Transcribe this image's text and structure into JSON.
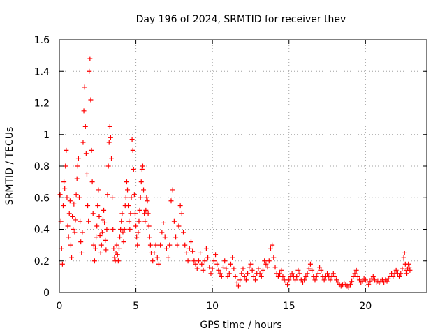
{
  "chart_data": {
    "type": "scatter",
    "title": "Day 196 of 2024, SRMTID for receiver thev",
    "xlabel": "GPS time / hours",
    "ylabel": "SRMTID / TECUs",
    "xlim": [
      0,
      24
    ],
    "ylim": [
      0,
      1.6
    ],
    "xticks": [
      0,
      5,
      10,
      15,
      20
    ],
    "xtick_labels": [
      "0",
      "5",
      "10",
      "15",
      "20"
    ],
    "yticks": [
      0,
      0.2,
      0.4,
      0.6,
      0.8,
      1,
      1.2,
      1.4,
      1.6
    ],
    "ytick_labels": [
      "0",
      "0.2",
      "0.4",
      "0.6",
      "0.8",
      "1",
      "1.2",
      "1.4",
      "1.6"
    ],
    "grid": true,
    "marker": "+",
    "series": [
      {
        "name": "SRMTID",
        "color": "#ff0000",
        "points": [
          [
            0.05,
            0.62
          ],
          [
            0.1,
            0.45
          ],
          [
            0.15,
            0.28
          ],
          [
            0.2,
            0.18
          ],
          [
            0.25,
            0.55
          ],
          [
            0.3,
            0.7
          ],
          [
            0.35,
            0.66
          ],
          [
            0.4,
            0.8
          ],
          [
            0.45,
            0.9
          ],
          [
            0.5,
            0.6
          ],
          [
            0.55,
            0.42
          ],
          [
            0.6,
            0.35
          ],
          [
            0.65,
            0.5
          ],
          [
            0.7,
            0.58
          ],
          [
            0.75,
            0.3
          ],
          [
            0.8,
            0.22
          ],
          [
            0.85,
            0.48
          ],
          [
            0.9,
            0.4
          ],
          [
            0.95,
            0.56
          ],
          [
            1.0,
            0.38
          ],
          [
            1.05,
            0.46
          ],
          [
            1.1,
            0.62
          ],
          [
            1.15,
            0.72
          ],
          [
            1.2,
            0.8
          ],
          [
            1.25,
            0.85
          ],
          [
            1.3,
            0.6
          ],
          [
            1.35,
            0.45
          ],
          [
            1.4,
            0.32
          ],
          [
            1.45,
            0.25
          ],
          [
            1.5,
            0.38
          ],
          [
            1.55,
            0.95
          ],
          [
            1.6,
            1.15
          ],
          [
            1.65,
            1.3
          ],
          [
            1.7,
            1.05
          ],
          [
            1.75,
            0.88
          ],
          [
            1.8,
            0.75
          ],
          [
            1.85,
            0.55
          ],
          [
            1.9,
            0.45
          ],
          [
            1.95,
            1.4
          ],
          [
            2.0,
            1.48
          ],
          [
            2.05,
            1.22
          ],
          [
            2.1,
            0.9
          ],
          [
            2.15,
            0.7
          ],
          [
            2.2,
            0.5
          ],
          [
            2.25,
            0.3
          ],
          [
            2.3,
            0.2
          ],
          [
            2.35,
            0.28
          ],
          [
            2.4,
            0.35
          ],
          [
            2.45,
            0.42
          ],
          [
            2.5,
            0.55
          ],
          [
            2.55,
            0.65
          ],
          [
            2.6,
            0.48
          ],
          [
            2.65,
            0.36
          ],
          [
            2.7,
            0.25
          ],
          [
            2.75,
            0.3
          ],
          [
            2.8,
            0.38
          ],
          [
            2.85,
            0.46
          ],
          [
            2.9,
            0.52
          ],
          [
            2.95,
            0.44
          ],
          [
            3.0,
            0.33
          ],
          [
            3.05,
            0.27
          ],
          [
            3.1,
            0.4
          ],
          [
            3.15,
            0.62
          ],
          [
            3.2,
            0.8
          ],
          [
            3.25,
            0.95
          ],
          [
            3.3,
            1.05
          ],
          [
            3.35,
            0.98
          ],
          [
            3.4,
            0.85
          ],
          [
            3.45,
            0.6
          ],
          [
            3.5,
            0.4
          ],
          [
            3.55,
            0.28
          ],
          [
            3.6,
            0.22
          ],
          [
            3.65,
            0.2
          ],
          [
            3.7,
            0.25
          ],
          [
            3.75,
            0.3
          ],
          [
            3.8,
            0.24
          ],
          [
            3.85,
            0.2
          ],
          [
            3.9,
            0.28
          ],
          [
            3.95,
            0.35
          ],
          [
            4.0,
            0.4
          ],
          [
            4.05,
            0.45
          ],
          [
            4.1,
            0.5
          ],
          [
            4.15,
            0.38
          ],
          [
            4.2,
            0.32
          ],
          [
            4.25,
            0.4
          ],
          [
            4.3,
            0.55
          ],
          [
            4.35,
            0.6
          ],
          [
            4.4,
            0.7
          ],
          [
            4.45,
            0.65
          ],
          [
            4.5,
            0.55
          ],
          [
            4.55,
            0.45
          ],
          [
            4.6,
            0.4
          ],
          [
            4.65,
            0.5
          ],
          [
            4.7,
            0.6
          ],
          [
            4.75,
            0.97
          ],
          [
            4.8,
            0.9
          ],
          [
            4.85,
            0.78
          ],
          [
            4.9,
            0.62
          ],
          [
            4.95,
            0.5
          ],
          [
            5.0,
            0.42
          ],
          [
            5.05,
            0.35
          ],
          [
            5.1,
            0.3
          ],
          [
            5.15,
            0.38
          ],
          [
            5.2,
            0.45
          ],
          [
            5.25,
            0.52
          ],
          [
            5.3,
            0.6
          ],
          [
            5.35,
            0.7
          ],
          [
            5.4,
            0.78
          ],
          [
            5.45,
            0.8
          ],
          [
            5.5,
            0.65
          ],
          [
            5.55,
            0.5
          ],
          [
            5.6,
            0.45
          ],
          [
            5.65,
            0.52
          ],
          [
            5.7,
            0.6
          ],
          [
            5.75,
            0.58
          ],
          [
            5.8,
            0.5
          ],
          [
            5.85,
            0.42
          ],
          [
            5.9,
            0.35
          ],
          [
            5.95,
            0.3
          ],
          [
            6.0,
            0.25
          ],
          [
            6.1,
            0.2
          ],
          [
            6.2,
            0.25
          ],
          [
            6.3,
            0.3
          ],
          [
            6.4,
            0.22
          ],
          [
            6.5,
            0.18
          ],
          [
            6.6,
            0.3
          ],
          [
            6.7,
            0.38
          ],
          [
            6.8,
            0.44
          ],
          [
            6.9,
            0.35
          ],
          [
            7.0,
            0.28
          ],
          [
            7.1,
            0.22
          ],
          [
            7.2,
            0.3
          ],
          [
            7.3,
            0.58
          ],
          [
            7.4,
            0.65
          ],
          [
            7.5,
            0.45
          ],
          [
            7.6,
            0.35
          ],
          [
            7.7,
            0.3
          ],
          [
            7.8,
            0.42
          ],
          [
            7.9,
            0.55
          ],
          [
            8.0,
            0.5
          ],
          [
            8.1,
            0.38
          ],
          [
            8.2,
            0.3
          ],
          [
            8.3,
            0.25
          ],
          [
            8.4,
            0.2
          ],
          [
            8.5,
            0.28
          ],
          [
            8.6,
            0.32
          ],
          [
            8.7,
            0.26
          ],
          [
            8.8,
            0.2
          ],
          [
            8.9,
            0.18
          ],
          [
            9.0,
            0.15
          ],
          [
            9.1,
            0.2
          ],
          [
            9.2,
            0.25
          ],
          [
            9.3,
            0.18
          ],
          [
            9.4,
            0.14
          ],
          [
            9.5,
            0.2
          ],
          [
            9.6,
            0.28
          ],
          [
            9.7,
            0.22
          ],
          [
            9.8,
            0.16
          ],
          [
            9.9,
            0.12
          ],
          [
            10.0,
            0.15
          ],
          [
            10.1,
            0.2
          ],
          [
            10.2,
            0.24
          ],
          [
            10.3,
            0.18
          ],
          [
            10.4,
            0.14
          ],
          [
            10.5,
            0.12
          ],
          [
            10.6,
            0.1
          ],
          [
            10.7,
            0.16
          ],
          [
            10.8,
            0.2
          ],
          [
            10.9,
            0.15
          ],
          [
            11.0,
            0.1
          ],
          [
            11.1,
            0.12
          ],
          [
            11.2,
            0.18
          ],
          [
            11.3,
            0.22
          ],
          [
            11.4,
            0.15
          ],
          [
            11.5,
            0.1
          ],
          [
            11.6,
            0.06
          ],
          [
            11.7,
            0.04
          ],
          [
            11.8,
            0.08
          ],
          [
            11.9,
            0.12
          ],
          [
            12.0,
            0.15
          ],
          [
            12.1,
            0.1
          ],
          [
            12.2,
            0.08
          ],
          [
            12.3,
            0.12
          ],
          [
            12.4,
            0.16
          ],
          [
            12.5,
            0.18
          ],
          [
            12.6,
            0.14
          ],
          [
            12.7,
            0.1
          ],
          [
            12.8,
            0.08
          ],
          [
            12.9,
            0.12
          ],
          [
            13.0,
            0.15
          ],
          [
            13.1,
            0.12
          ],
          [
            13.2,
            0.1
          ],
          [
            13.3,
            0.14
          ],
          [
            13.4,
            0.2
          ],
          [
            13.5,
            0.18
          ],
          [
            13.6,
            0.16
          ],
          [
            13.7,
            0.2
          ],
          [
            13.8,
            0.28
          ],
          [
            13.9,
            0.3
          ],
          [
            14.0,
            0.22
          ],
          [
            14.1,
            0.16
          ],
          [
            14.2,
            0.12
          ],
          [
            14.3,
            0.1
          ],
          [
            14.4,
            0.12
          ],
          [
            14.5,
            0.14
          ],
          [
            14.6,
            0.1
          ],
          [
            14.7,
            0.08
          ],
          [
            14.8,
            0.06
          ],
          [
            14.9,
            0.05
          ],
          [
            15.0,
            0.08
          ],
          [
            15.1,
            0.1
          ],
          [
            15.2,
            0.12
          ],
          [
            15.3,
            0.1
          ],
          [
            15.4,
            0.08
          ],
          [
            15.5,
            0.1
          ],
          [
            15.6,
            0.14
          ],
          [
            15.7,
            0.12
          ],
          [
            15.8,
            0.08
          ],
          [
            15.9,
            0.06
          ],
          [
            16.0,
            0.08
          ],
          [
            16.1,
            0.1
          ],
          [
            16.2,
            0.12
          ],
          [
            16.3,
            0.15
          ],
          [
            16.4,
            0.18
          ],
          [
            16.5,
            0.14
          ],
          [
            16.6,
            0.1
          ],
          [
            16.7,
            0.08
          ],
          [
            16.8,
            0.1
          ],
          [
            16.9,
            0.12
          ],
          [
            17.0,
            0.16
          ],
          [
            17.1,
            0.14
          ],
          [
            17.2,
            0.1
          ],
          [
            17.3,
            0.08
          ],
          [
            17.4,
            0.1
          ],
          [
            17.5,
            0.12
          ],
          [
            17.6,
            0.1
          ],
          [
            17.7,
            0.08
          ],
          [
            17.8,
            0.1
          ],
          [
            17.9,
            0.12
          ],
          [
            18.0,
            0.1
          ],
          [
            18.1,
            0.08
          ],
          [
            18.2,
            0.06
          ],
          [
            18.3,
            0.05
          ],
          [
            18.4,
            0.04
          ],
          [
            18.5,
            0.05
          ],
          [
            18.6,
            0.06
          ],
          [
            18.7,
            0.05
          ],
          [
            18.8,
            0.04
          ],
          [
            18.9,
            0.03
          ],
          [
            19.0,
            0.05
          ],
          [
            19.1,
            0.07
          ],
          [
            19.2,
            0.1
          ],
          [
            19.3,
            0.12
          ],
          [
            19.4,
            0.14
          ],
          [
            19.5,
            0.1
          ],
          [
            19.6,
            0.08
          ],
          [
            19.7,
            0.06
          ],
          [
            19.8,
            0.07
          ],
          [
            19.9,
            0.09
          ],
          [
            20.0,
            0.08
          ],
          [
            20.1,
            0.06
          ],
          [
            20.2,
            0.05
          ],
          [
            20.3,
            0.07
          ],
          [
            20.4,
            0.09
          ],
          [
            20.5,
            0.1
          ],
          [
            20.6,
            0.08
          ],
          [
            20.7,
            0.06
          ],
          [
            20.8,
            0.07
          ],
          [
            20.9,
            0.06
          ],
          [
            21.0,
            0.07
          ],
          [
            21.1,
            0.08
          ],
          [
            21.2,
            0.06
          ],
          [
            21.3,
            0.08
          ],
          [
            21.4,
            0.07
          ],
          [
            21.5,
            0.09
          ],
          [
            21.6,
            0.1
          ],
          [
            21.7,
            0.12
          ],
          [
            21.8,
            0.1
          ],
          [
            21.9,
            0.12
          ],
          [
            22.0,
            0.14
          ],
          [
            22.1,
            0.12
          ],
          [
            22.2,
            0.1
          ],
          [
            22.3,
            0.12
          ],
          [
            22.4,
            0.15
          ],
          [
            22.5,
            0.22
          ],
          [
            22.55,
            0.25
          ],
          [
            22.6,
            0.18
          ],
          [
            22.65,
            0.14
          ],
          [
            22.7,
            0.12
          ],
          [
            22.75,
            0.15
          ],
          [
            22.8,
            0.18
          ],
          [
            22.85,
            0.16
          ],
          [
            22.9,
            0.14
          ]
        ]
      }
    ]
  }
}
